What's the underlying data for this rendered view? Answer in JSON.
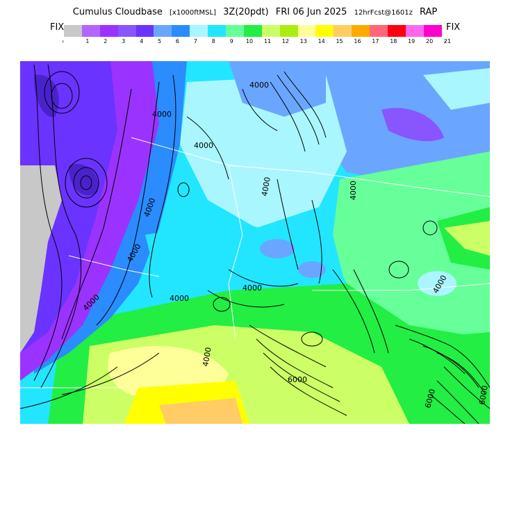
{
  "header": {
    "product": "Cumulus Cloudbase",
    "units": "[x1000ftMSL]",
    "time_label": "3Z(20pdt)",
    "date_label": "FRI 06 Jun 2025",
    "forecast_label": "12hrFcst@1601z",
    "model": "RAP"
  },
  "legend": {
    "fix_left": "FIX",
    "fix_right": "FIX",
    "left_arrow": "‹",
    "right_arrow": "›",
    "ticks": [
      "1",
      "2",
      "3",
      "4",
      "5",
      "6",
      "7",
      "8",
      "9",
      "10",
      "11",
      "12",
      "13",
      "14",
      "15",
      "16",
      "17",
      "18",
      "19",
      "20",
      "21"
    ],
    "colors": [
      "#c8c8c8",
      "#b266ff",
      "#9a33ff",
      "#8855ff",
      "#6a33ff",
      "#6aa6ff",
      "#2a8cff",
      "#aaf6ff",
      "#22e6ff",
      "#66ff99",
      "#22ee44",
      "#ccff66",
      "#aaee11",
      "#ffff99",
      "#ffff00",
      "#ffcc66",
      "#ffaa00",
      "#ff6677",
      "#ff0011",
      "#ff66ee",
      "#ff00cc"
    ]
  },
  "map": {
    "contour_labels": [
      "4000",
      "4000",
      "4000",
      "4000",
      "4000",
      "4000",
      "4000",
      "4000",
      "4000",
      "4000",
      "4000",
      "4000",
      "6000",
      "6000",
      "6000"
    ]
  }
}
